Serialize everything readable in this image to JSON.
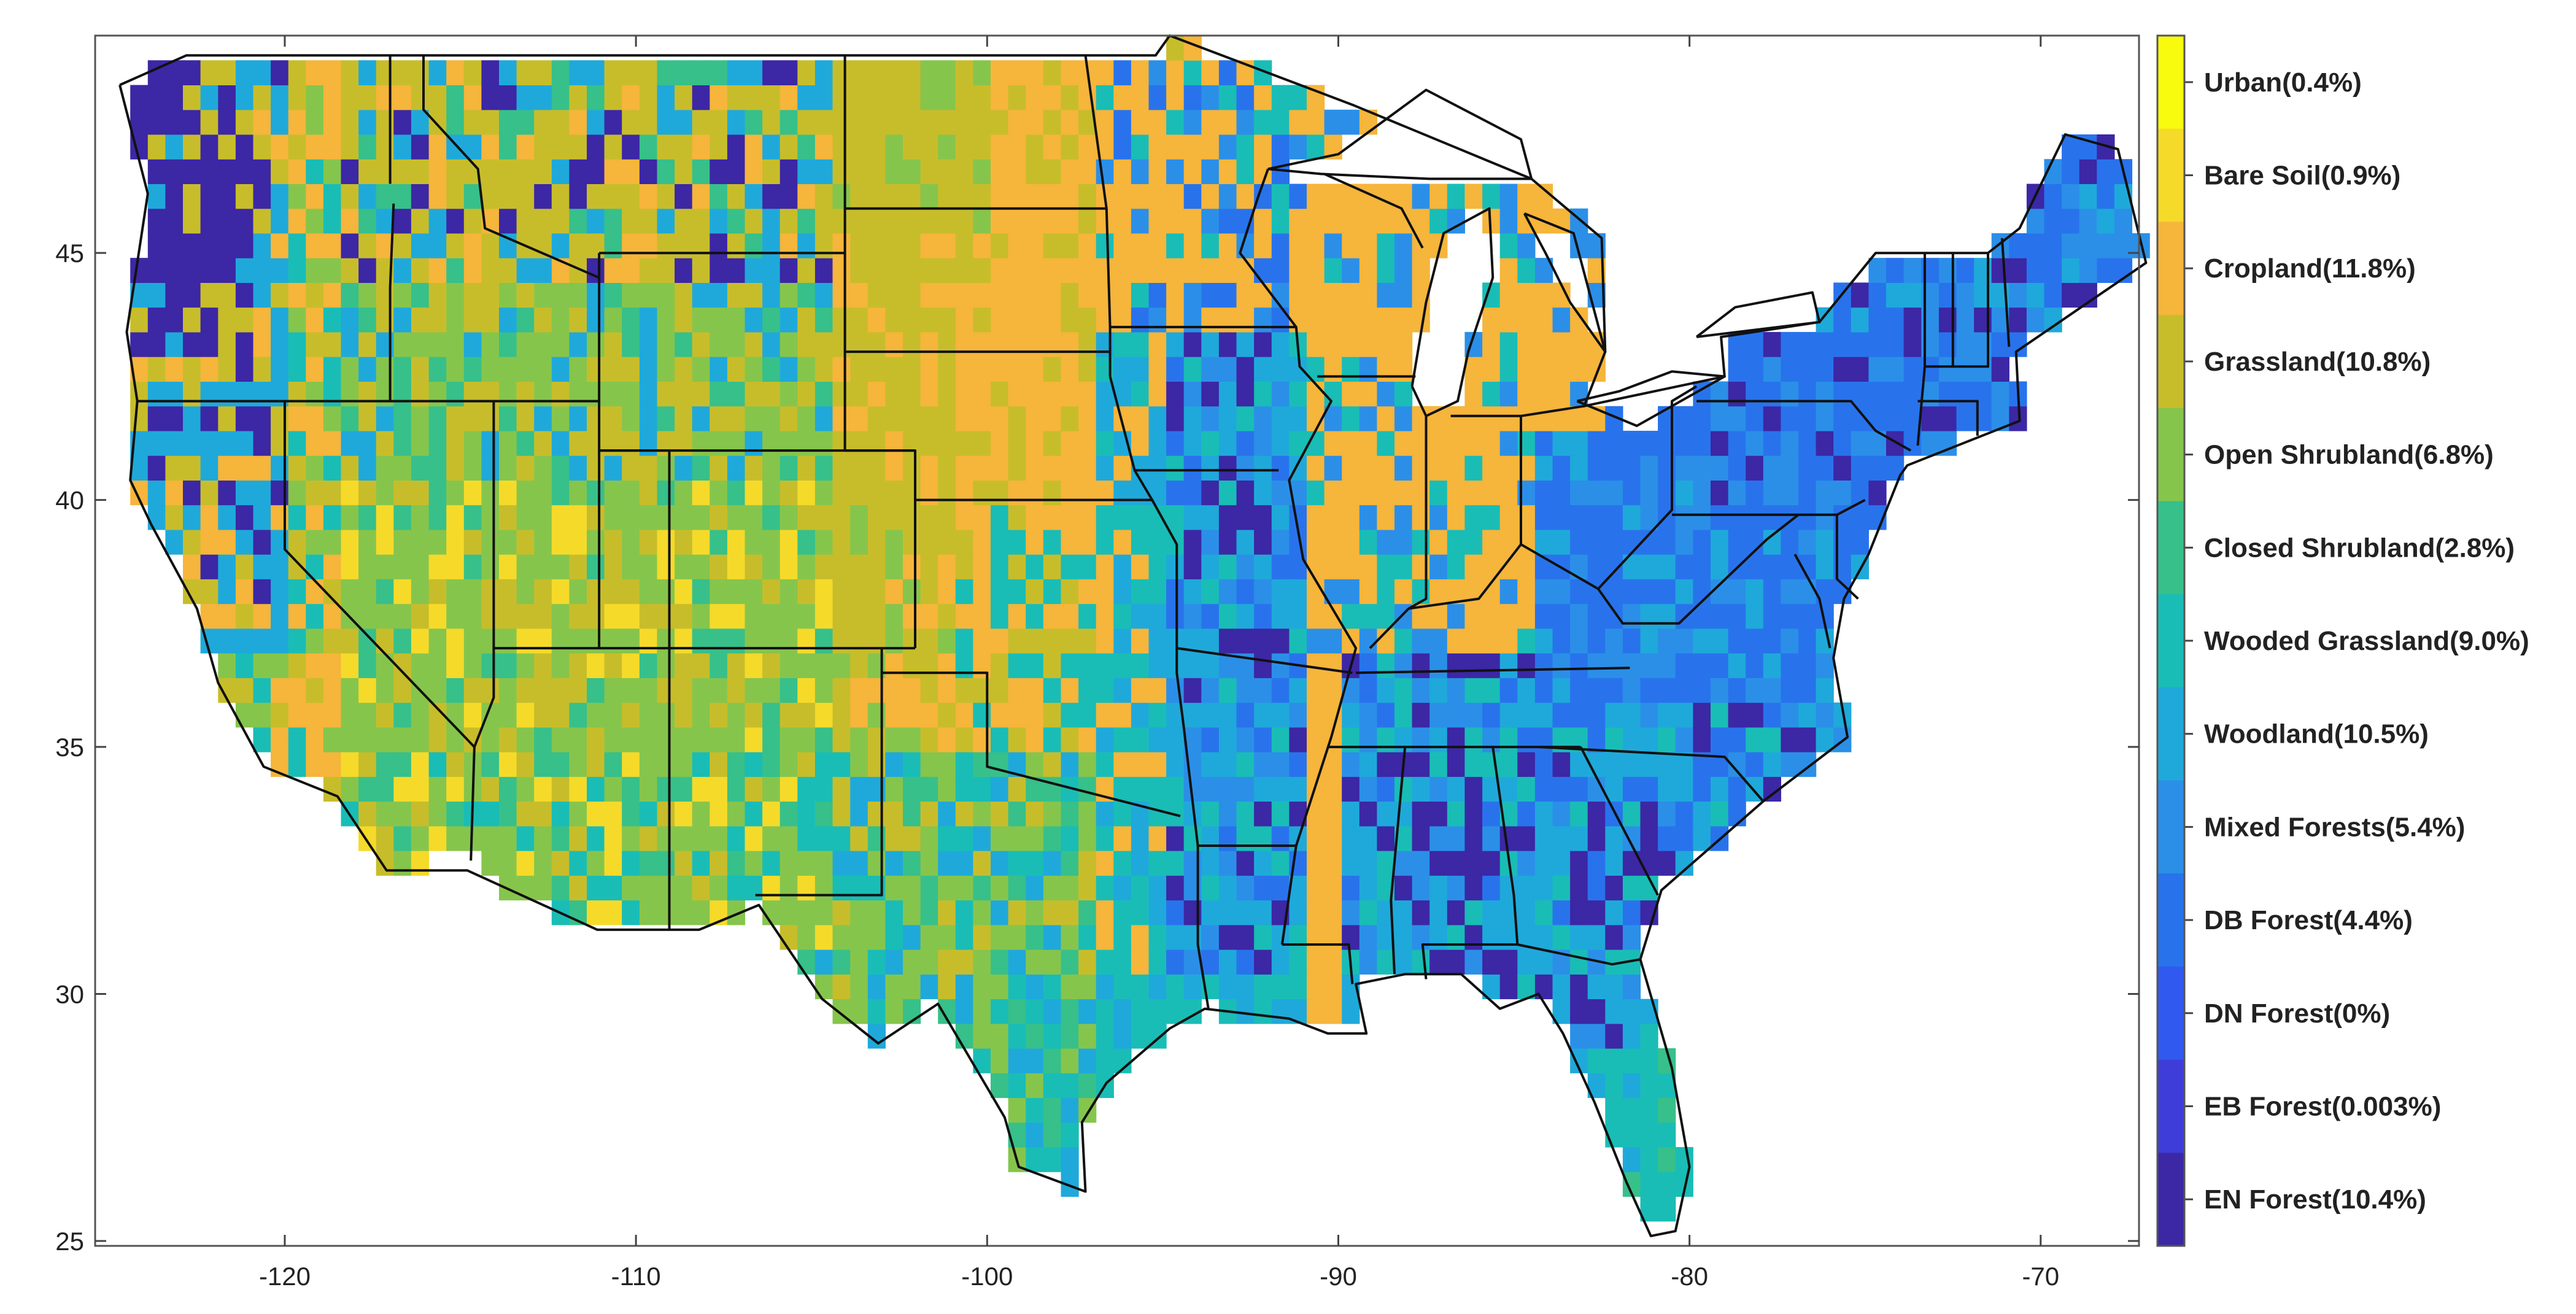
{
  "map": {
    "x_axis": {
      "range": [
        -125.4,
        -67.2
      ],
      "ticks": [
        {
          "value": -120,
          "label": "-120"
        },
        {
          "value": -110,
          "label": "-110"
        },
        {
          "value": -100,
          "label": "-100"
        },
        {
          "value": -90,
          "label": "-90"
        },
        {
          "value": -80,
          "label": "-80"
        },
        {
          "value": -70,
          "label": "-70"
        }
      ]
    },
    "y_axis": {
      "range": [
        24.9,
        49.4
      ],
      "ticks": [
        {
          "value": 25,
          "label": "25"
        },
        {
          "value": 30,
          "label": "30"
        },
        {
          "value": 35,
          "label": "35"
        },
        {
          "value": 40,
          "label": "40"
        },
        {
          "value": 45,
          "label": "45"
        }
      ]
    },
    "legend": {
      "placement": "right colorbar",
      "classes": [
        {
          "label": "Urban(0.4%)",
          "color": "#f9fb0e"
        },
        {
          "label": "Bare Soil(0.9%)",
          "color": "#f5da2a"
        },
        {
          "label": "Cropland(11.8%)",
          "color": "#f6b53b"
        },
        {
          "label": "Grassland(10.8%)",
          "color": "#c7bd2b"
        },
        {
          "label": "Open Shrubland(6.8%)",
          "color": "#86c54c"
        },
        {
          "label": "Closed Shrubland(2.8%)",
          "color": "#37c08a"
        },
        {
          "label": "Wooded Grassland(9.0%)",
          "color": "#19bdb6"
        },
        {
          "label": "Woodland(10.5%)",
          "color": "#1fa9da"
        },
        {
          "label": "Mixed Forests(5.4%)",
          "color": "#2b8fe8"
        },
        {
          "label": "DB Forest(4.4%)",
          "color": "#2873ec"
        },
        {
          "label": "DN Forest(0%)",
          "color": "#3059ef"
        },
        {
          "label": "EB Forest(0.003%)",
          "color": "#3f3dd9"
        },
        {
          "label": "EN Forest(10.4%)",
          "color": "#3c27a5"
        }
      ]
    }
  }
}
